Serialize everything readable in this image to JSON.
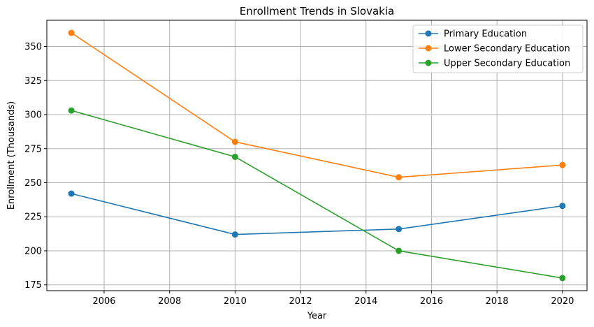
{
  "chart_data": {
    "type": "line",
    "title": "Enrollment Trends in Slovakia",
    "xlabel": "Year",
    "ylabel": "Enrollment (Thousands)",
    "x": [
      2005,
      2010,
      2015,
      2020
    ],
    "xlim": [
      2004.25,
      2020.75
    ],
    "ylim": [
      170.75,
      369.25
    ],
    "xticks": [
      2006,
      2008,
      2010,
      2012,
      2014,
      2016,
      2018,
      2020
    ],
    "yticks": [
      175,
      200,
      225,
      250,
      275,
      300,
      325,
      350
    ],
    "grid": true,
    "legend_position": "top-right",
    "series": [
      {
        "name": "Primary Education",
        "color": "#1f77b4",
        "values": [
          242,
          212,
          216,
          233
        ]
      },
      {
        "name": "Lower Secondary Education",
        "color": "#ff7f0e",
        "values": [
          360,
          280,
          254,
          263
        ]
      },
      {
        "name": "Upper Secondary Education",
        "color": "#2ca02c",
        "values": [
          303,
          269,
          200,
          180
        ]
      }
    ]
  }
}
